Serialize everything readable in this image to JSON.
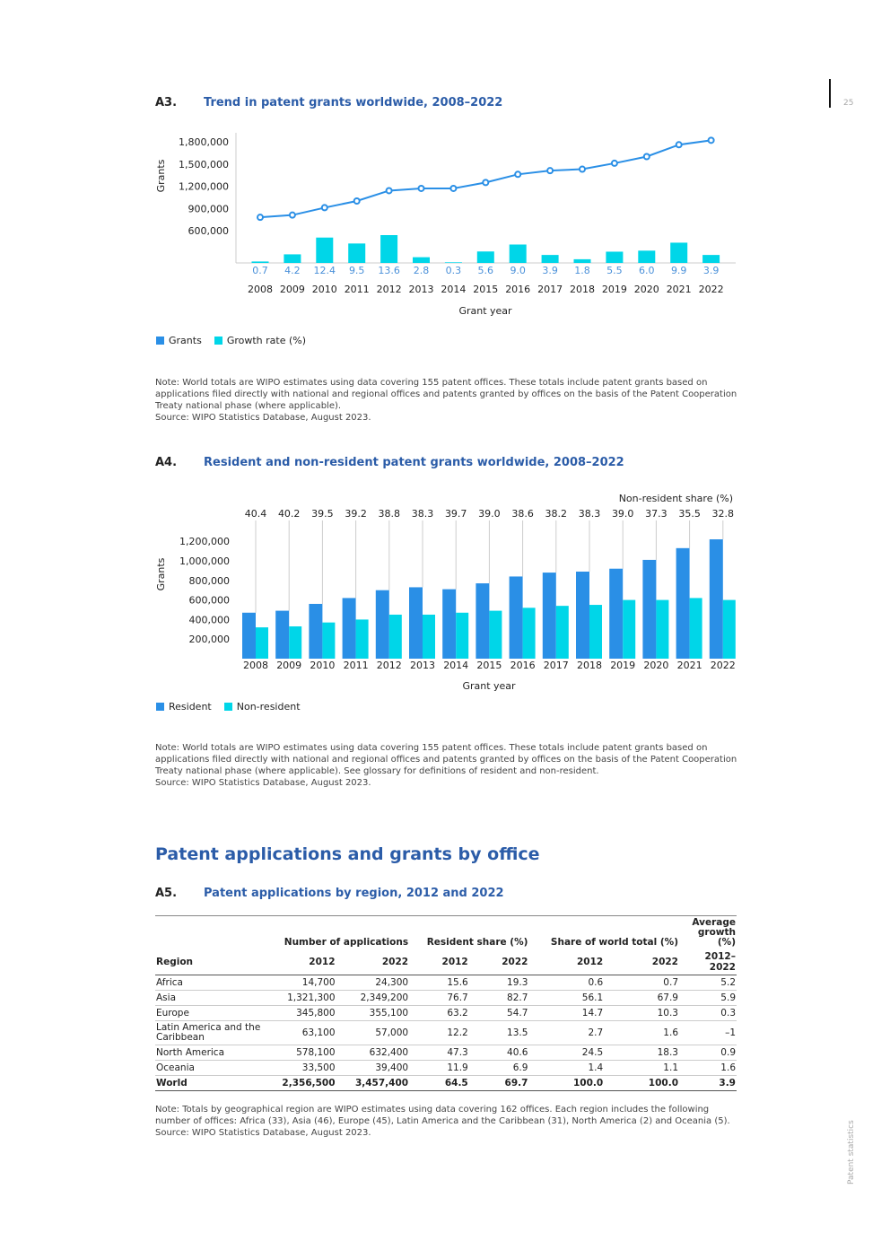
{
  "page": {
    "number": "25",
    "side_label": "Patent statistics"
  },
  "a3": {
    "num": "A3.",
    "title": "Trend in patent grants worldwide, 2008–2022",
    "legend": [
      "Grants",
      "Growth rate (%)"
    ],
    "note": [
      "Note: World totals are WIPO estimates using data covering 155 patent offices. These totals include patent grants based on applications filed directly with national and regional offices and patents granted by offices on the basis of the Patent Cooperation Treaty national phase (where applicable).",
      "Source: WIPO Statistics Database, August 2023."
    ]
  },
  "a4": {
    "num": "A4.",
    "title": "Resident and non-resident patent grants worldwide, 2008–2022",
    "legend": [
      "Resident",
      "Non-resident"
    ],
    "note": [
      "Note: World totals are WIPO estimates using data covering 155 patent offices. These totals include patent grants based on applications filed directly with national and regional offices and patents granted by offices on the basis of the Patent Cooperation Treaty national phase (where applicable). See glossary for definitions of resident and non-resident.",
      "Source: WIPO Statistics Database, August 2023."
    ]
  },
  "section_title": "Patent applications and grants by office",
  "a5": {
    "num": "A5.",
    "title": "Patent applications by region, 2012 and 2022",
    "groups": [
      "Number of applications",
      "Resident share (%)",
      "Share of world total (%)",
      "Average growth (%)"
    ],
    "columns": [
      "Region",
      "2012",
      "2022",
      "2012",
      "2022",
      "2012",
      "2022",
      "2012–2022"
    ],
    "rows": [
      [
        "Africa",
        "14,700",
        "24,300",
        "15.6",
        "19.3",
        "0.6",
        "0.7",
        "5.2"
      ],
      [
        "Asia",
        "1,321,300",
        "2,349,200",
        "76.7",
        "82.7",
        "56.1",
        "67.9",
        "5.9"
      ],
      [
        "Europe",
        "345,800",
        "355,100",
        "63.2",
        "54.7",
        "14.7",
        "10.3",
        "0.3"
      ],
      [
        "Latin America and the Caribbean",
        "63,100",
        "57,000",
        "12.2",
        "13.5",
        "2.7",
        "1.6",
        "–1"
      ],
      [
        "North America",
        "578,100",
        "632,400",
        "47.3",
        "40.6",
        "24.5",
        "18.3",
        "0.9"
      ],
      [
        "Oceania",
        "33,500",
        "39,400",
        "11.9",
        "6.9",
        "1.4",
        "1.1",
        "1.6"
      ]
    ],
    "total": [
      "World",
      "2,356,500",
      "3,457,400",
      "64.5",
      "69.7",
      "100.0",
      "100.0",
      "3.9"
    ],
    "note": [
      "Note: Totals by geographical region are WIPO estimates using data covering 162 offices. Each region includes the following number of offices: Africa (33), Asia (46), Europe (45), Latin America and the Caribbean (31), North America (2) and Oceania (5).",
      "Source: WIPO Statistics Database, August 2023."
    ]
  },
  "chart_data": [
    {
      "type": "line",
      "title": "Trend in patent grants worldwide, 2008–2022",
      "xlabel": "Grant year",
      "ylabel": "Grants",
      "categories": [
        "2008",
        "2009",
        "2010",
        "2011",
        "2012",
        "2013",
        "2014",
        "2015",
        "2016",
        "2017",
        "2018",
        "2019",
        "2020",
        "2021",
        "2022"
      ],
      "yticks": [
        "600,000",
        "900,000",
        "1,200,000",
        "1,500,000",
        "1,800,000"
      ],
      "ytick_values": [
        600000,
        900000,
        1200000,
        1500000,
        1800000
      ],
      "series": [
        {
          "name": "Grants",
          "type": "line",
          "color": "#2a8fe6",
          "values": [
            780000,
            810000,
            910000,
            1000000,
            1140000,
            1170000,
            1170000,
            1250000,
            1360000,
            1410000,
            1430000,
            1510000,
            1600000,
            1760000,
            1820000
          ]
        },
        {
          "name": "Growth rate (%)",
          "type": "bar",
          "color": "#00d6e8",
          "labels": [
            "0.7",
            "4.2",
            "12.4",
            "9.5",
            "13.6",
            "2.8",
            "0.3",
            "5.6",
            "9.0",
            "3.9",
            "1.8",
            "5.5",
            "6.0",
            "9.9",
            "3.9"
          ],
          "values": [
            0.7,
            4.2,
            12.4,
            9.5,
            13.6,
            2.8,
            0.3,
            5.6,
            9.0,
            3.9,
            1.8,
            5.5,
            6.0,
            9.9,
            3.9
          ]
        }
      ],
      "legend": "bottom-left"
    },
    {
      "type": "bar",
      "title": "Resident and non-resident patent grants worldwide, 2008–2022",
      "xlabel": "Grant year",
      "ylabel": "Grants",
      "categories": [
        "2008",
        "2009",
        "2010",
        "2011",
        "2012",
        "2013",
        "2014",
        "2015",
        "2016",
        "2017",
        "2018",
        "2019",
        "2020",
        "2021",
        "2022"
      ],
      "yticks": [
        "200,000",
        "400,000",
        "600,000",
        "800,000",
        "1,000,000",
        "1,200,000"
      ],
      "ytick_values": [
        200000,
        400000,
        600000,
        800000,
        1000000,
        1200000
      ],
      "series": [
        {
          "name": "Resident",
          "color": "#2a8fe6",
          "values": [
            470000,
            490000,
            560000,
            620000,
            700000,
            730000,
            710000,
            770000,
            840000,
            880000,
            890000,
            920000,
            1010000,
            1130000,
            1220000
          ]
        },
        {
          "name": "Non-resident",
          "color": "#00d6e8",
          "values": [
            320000,
            330000,
            370000,
            400000,
            450000,
            450000,
            470000,
            490000,
            520000,
            540000,
            550000,
            600000,
            600000,
            620000,
            600000
          ]
        }
      ],
      "share_title": "Non-resident share (%)",
      "share": [
        "40.4",
        "40.2",
        "39.5",
        "39.2",
        "38.8",
        "38.3",
        "39.7",
        "39.0",
        "38.6",
        "38.2",
        "38.3",
        "39.0",
        "37.3",
        "35.5",
        "32.8"
      ],
      "legend": "bottom-left"
    }
  ]
}
